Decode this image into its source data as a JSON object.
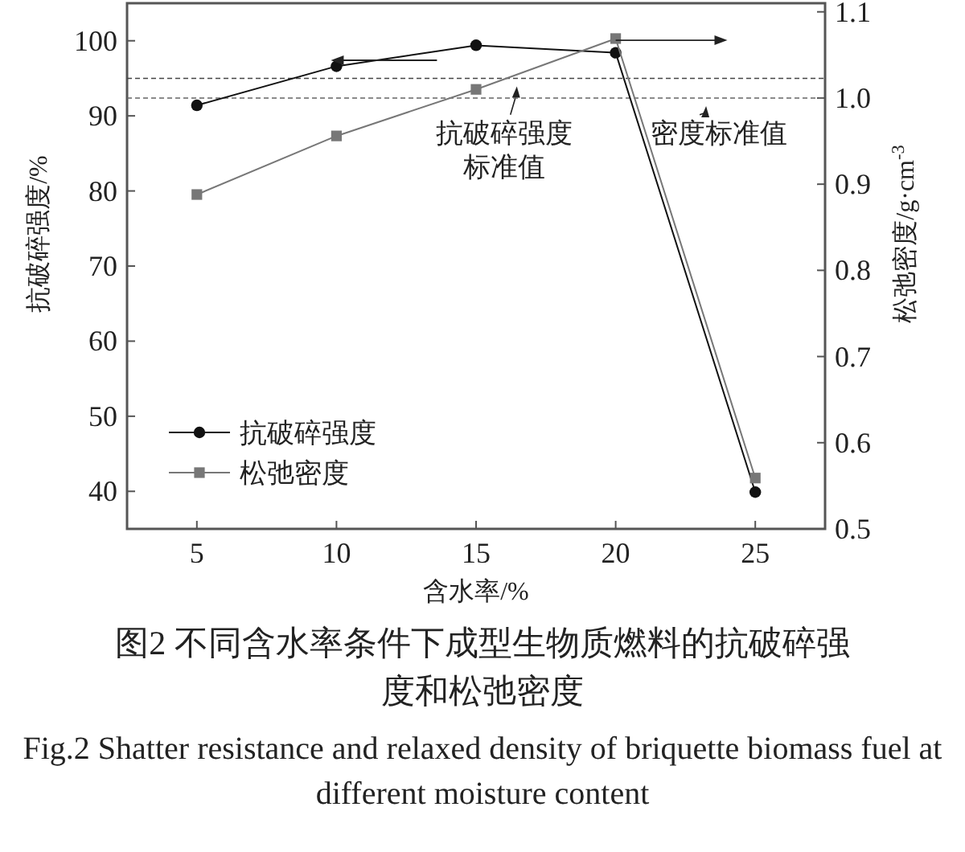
{
  "chart_data": {
    "type": "line",
    "title": "图2 不同含水率条件下成型生物质燃料的抗破碎强度和松弛密度",
    "subtitle": "Fig.2 Shatter resistance and relaxed density of briquette biomass fuel at different moisture content",
    "xlabel": "含水率/%",
    "ylabel": "抗破碎强度/%",
    "y2label": "松弛密度/g·cm$^{-3}$",
    "x": [
      5,
      10,
      15,
      20,
      25
    ],
    "xlim": [
      2.5,
      27.5
    ],
    "xticks": [
      5,
      10,
      15,
      20,
      25
    ],
    "ylim": [
      35,
      105
    ],
    "yticks": [
      40,
      50,
      60,
      70,
      80,
      90,
      100
    ],
    "y2lim": [
      0.5,
      1.11
    ],
    "y2ticks": [
      0.5,
      0.6,
      0.7,
      0.8,
      0.9,
      {
        "value": 1.0,
        "label": "1.0"
      },
      1.1
    ],
    "series": [
      {
        "name": "抗破碎强度",
        "color": "#111111",
        "marker": "circle",
        "values": [
          91.4,
          96.6,
          99.4,
          98.4,
          39.9
        ]
      },
      {
        "name": "松弛密度",
        "color": "#777777",
        "marker": "square",
        "axis": "y2",
        "values": [
          0.888,
          0.956,
          1.01,
          1.069,
          0.559
        ]
      }
    ],
    "ref_lines": [
      {
        "axis": "y",
        "value": 95,
        "label": "抗破碎强度标准值",
        "color": "#444444",
        "line_style": "dashed"
      },
      {
        "axis": "y2",
        "value": 1.0,
        "label": "密度标准值",
        "color": "#666666",
        "line_style": "dashed"
      }
    ],
    "legend": "bottom left",
    "grid": false,
    "line_style": "solid"
  }
}
